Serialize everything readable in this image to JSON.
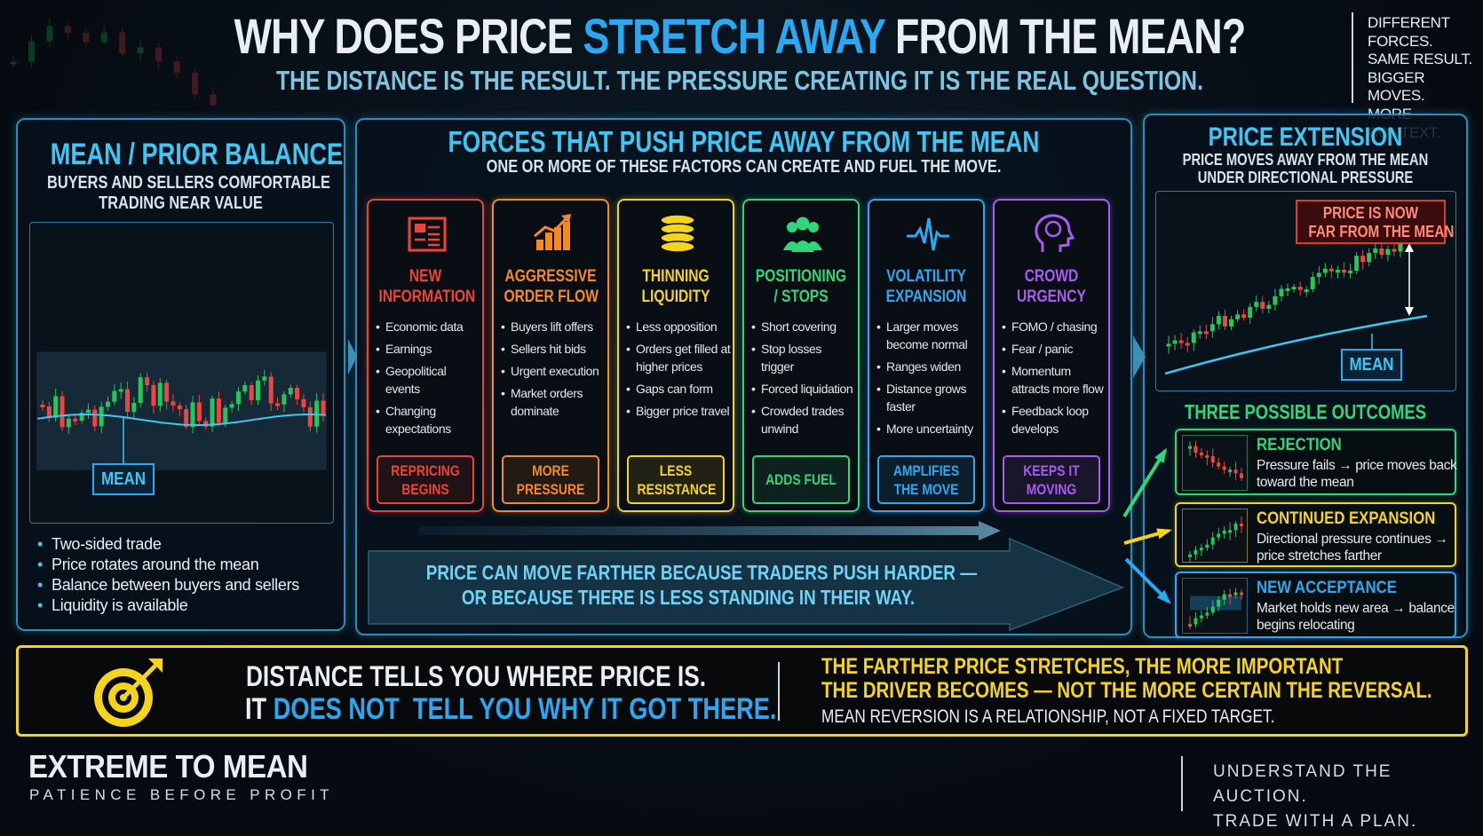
{
  "header": {
    "title": {
      "part1": "WHY DOES PRICE",
      "highlight": "STRETCH AWAY",
      "part2": "FROM THE MEAN?"
    },
    "subtitle": "THE DISTANCE IS THE RESULT. THE PRESSURE CREATING IT IS THE REAL QUESTION.",
    "side_note": [
      "DIFFERENT",
      "FORCES.",
      "SAME RESULT.",
      "BIGGER MOVES.",
      "MORE CONTEXT."
    ]
  },
  "left_panel": {
    "title": "MEAN / PRIOR BALANCE",
    "subtitle": [
      "BUYERS AND SELLERS COMFORTABLE",
      "TRADING NEAR VALUE"
    ],
    "chart_label": "MEAN",
    "bullets": [
      "Two-sided trade",
      "Price rotates around the mean",
      "Balance between buyers and sellers",
      "Liquidity is available"
    ]
  },
  "middle_panel": {
    "title": "FORCES THAT PUSH PRICE AWAY FROM THE MEAN",
    "subtitle": "ONE OR MORE OF THESE FACTORS CAN CREATE AND FUEL THE MOVE.",
    "cards": [
      {
        "title": [
          "NEW",
          "INFORMATION"
        ],
        "bullets": [
          "Economic data",
          "Earnings",
          "Geopolitical events",
          "Changing expectations"
        ],
        "footer": [
          "REPRICING",
          "BEGINS"
        ],
        "color": "#ee4337"
      },
      {
        "title": [
          "AGGRESSIVE",
          "ORDER FLOW"
        ],
        "bullets": [
          "Buyers lift offers",
          "Sellers hit bids",
          "Urgent execution",
          "Market orders dominate"
        ],
        "footer": [
          "MORE",
          "PRESSURE"
        ],
        "color": "#f58a22"
      },
      {
        "title": [
          "THINNING",
          "LIQUIDITY"
        ],
        "bullets": [
          "Less opposition",
          "Orders get filled at higher prices",
          "Gaps can form",
          "Bigger price travel"
        ],
        "footer": [
          "LESS",
          "RESISTANCE"
        ],
        "color": "#f5d41c"
      },
      {
        "title": [
          "POSITIONING",
          "/ STOPS"
        ],
        "bullets": [
          "Short covering",
          "Stop losses trigger",
          "Forced liquidation",
          "Crowded trades unwind"
        ],
        "footer": [
          "ADDS FUEL"
        ],
        "color": "#2fd67c"
      },
      {
        "title": [
          "VOLATILITY",
          "EXPANSION"
        ],
        "bullets": [
          "Larger moves become normal",
          "Ranges widen",
          "Distance grows faster",
          "More uncertainty"
        ],
        "footer": [
          "AMPLIFIES",
          "THE MOVE"
        ],
        "color": "#2aa9f2"
      },
      {
        "title": [
          "CROWD",
          "URGENCY"
        ],
        "bullets": [
          "FOMO / chasing",
          "Fear / panic",
          "Momentum attracts more flow",
          "Feedback loop develops"
        ],
        "footer": [
          "KEEPS IT",
          "MOVING"
        ],
        "color": "#a85cf2"
      }
    ],
    "arrow_text": [
      "PRICE CAN MOVE FARTHER BECAUSE TRADERS PUSH HARDER —",
      "OR BECAUSE THERE IS LESS STANDING IN THEIR WAY."
    ]
  },
  "right_panel": {
    "title": "PRICE EXTENSION",
    "subtitle": [
      "PRICE MOVES AWAY FROM THE MEAN",
      "UNDER DIRECTIONAL PRESSURE"
    ],
    "callout": [
      "PRICE IS NOW",
      "FAR FROM THE MEAN"
    ],
    "chart_label": "MEAN",
    "outcomes_title": "THREE POSSIBLE OUTCOMES",
    "outcomes": [
      {
        "title": "REJECTION",
        "text": "Pressure fails → price moves back toward the mean",
        "color": "#2fd67c"
      },
      {
        "title": "CONTINUED EXPANSION",
        "text": "Directional pressure continues → price stretches farther",
        "color": "#f5d41c"
      },
      {
        "title": "NEW ACCEPTANCE",
        "text": "Market holds new area → balance begins relocating",
        "color": "#2aa9f2"
      }
    ]
  },
  "banner": {
    "left": {
      "line1": "DISTANCE TELLS YOU WHERE PRICE IS.",
      "line2_lead": "IT",
      "line2_highlight": "DOES NOT  TELL YOU WHY IT GOT THERE."
    },
    "right": {
      "lines": [
        "THE FARTHER PRICE STRETCHES, THE MORE IMPORTANT",
        "THE DRIVER BECOMES — NOT THE MORE CERTAIN THE REVERSAL."
      ],
      "note": "MEAN REVERSION IS A RELATIONSHIP, NOT A FIXED TARGET."
    }
  },
  "footer": {
    "brand": "EXTREME TO MEAN",
    "tagline": "PATIENCE BEFORE PROFIT",
    "motto": [
      "UNDERSTAND THE AUCTION.",
      "TRADE WITH A PLAN."
    ]
  }
}
